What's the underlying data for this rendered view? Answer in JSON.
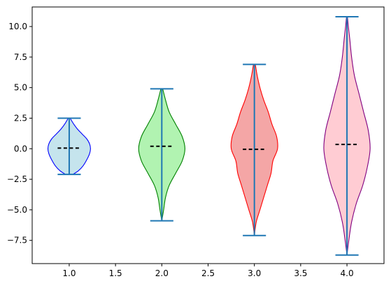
{
  "chart_data": {
    "type": "violin",
    "title": "",
    "xlabel": "",
    "ylabel": "",
    "xlim": [
      0.6,
      4.4
    ],
    "ylim": [
      -9.4,
      11.6
    ],
    "xticks": [
      1.0,
      1.5,
      2.0,
      2.5,
      3.0,
      3.5,
      4.0
    ],
    "xtick_labels": [
      "1.0",
      "1.5",
      "2.0",
      "2.5",
      "3.0",
      "3.5",
      "4.0"
    ],
    "yticks": [
      -7.5,
      -5.0,
      -2.5,
      0.0,
      2.5,
      5.0,
      7.5,
      10.0
    ],
    "ytick_labels": [
      "−7.5",
      "−5.0",
      "−2.5",
      "0.0",
      "2.5",
      "5.0",
      "7.5",
      "10.0"
    ],
    "grid": false,
    "mean_line_style": "dashed",
    "series": [
      {
        "position": 1.0,
        "min": -2.1,
        "max": 2.5,
        "mean": 0.05,
        "fill": "#add8e6",
        "edge": "#0000ff",
        "width_profile": [
          [
            -2.1,
            0.04
          ],
          [
            -1.8,
            0.1
          ],
          [
            -1.4,
            0.15
          ],
          [
            -0.9,
            0.19
          ],
          [
            -0.4,
            0.22
          ],
          [
            0.0,
            0.23
          ],
          [
            0.4,
            0.22
          ],
          [
            0.8,
            0.19
          ],
          [
            1.2,
            0.14
          ],
          [
            1.6,
            0.09
          ],
          [
            2.0,
            0.05
          ],
          [
            2.5,
            0.01
          ]
        ]
      },
      {
        "position": 2.0,
        "min": -5.9,
        "max": 4.9,
        "mean": 0.2,
        "fill": "#90ee90",
        "edge": "#008000",
        "width_profile": [
          [
            -5.9,
            0.0
          ],
          [
            -5.0,
            0.02
          ],
          [
            -4.0,
            0.04
          ],
          [
            -3.0,
            0.08
          ],
          [
            -2.0,
            0.15
          ],
          [
            -1.0,
            0.22
          ],
          [
            0.0,
            0.25
          ],
          [
            1.0,
            0.22
          ],
          [
            2.0,
            0.15
          ],
          [
            3.0,
            0.08
          ],
          [
            4.0,
            0.04
          ],
          [
            4.9,
            0.01
          ]
        ]
      },
      {
        "position": 3.0,
        "min": -7.1,
        "max": 6.9,
        "mean": -0.05,
        "fill": "#f08080",
        "edge": "#ff0000",
        "width_profile": [
          [
            -7.1,
            0.0
          ],
          [
            -6.0,
            0.02
          ],
          [
            -5.0,
            0.06
          ],
          [
            -4.0,
            0.1
          ],
          [
            -3.0,
            0.14
          ],
          [
            -2.0,
            0.18
          ],
          [
            -1.0,
            0.2
          ],
          [
            0.0,
            0.25
          ],
          [
            1.0,
            0.24
          ],
          [
            2.0,
            0.19
          ],
          [
            3.0,
            0.15
          ],
          [
            4.0,
            0.1
          ],
          [
            5.0,
            0.06
          ],
          [
            6.0,
            0.03
          ],
          [
            6.9,
            0.01
          ]
        ]
      },
      {
        "position": 4.0,
        "min": -8.7,
        "max": 10.8,
        "mean": 0.35,
        "fill": "#ffb6c1",
        "edge": "#800080",
        "width_profile": [
          [
            -8.7,
            0.0
          ],
          [
            -7.5,
            0.02
          ],
          [
            -6.0,
            0.05
          ],
          [
            -4.5,
            0.1
          ],
          [
            -3.0,
            0.17
          ],
          [
            -1.5,
            0.22
          ],
          [
            0.0,
            0.25
          ],
          [
            1.5,
            0.23
          ],
          [
            3.0,
            0.18
          ],
          [
            4.5,
            0.13
          ],
          [
            6.0,
            0.08
          ],
          [
            7.5,
            0.05
          ],
          [
            9.0,
            0.03
          ],
          [
            10.0,
            0.015
          ],
          [
            10.8,
            0.005
          ]
        ]
      }
    ]
  }
}
